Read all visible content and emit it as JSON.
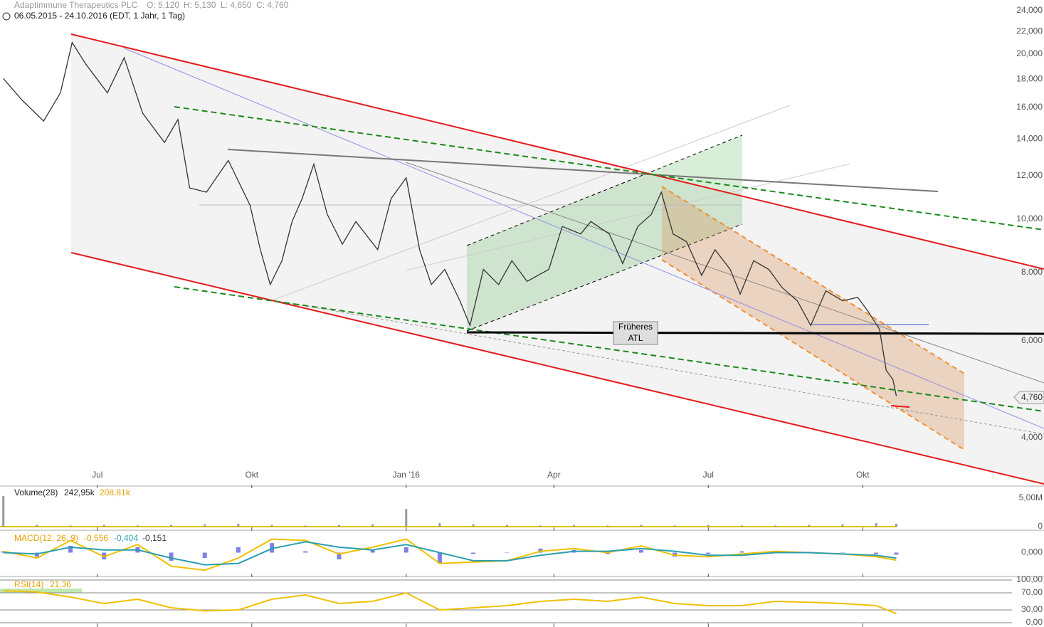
{
  "chart_data": [
    {
      "type": "line",
      "title": "Adaptimmune Therapeutics PLC",
      "ohlc": [
        "O: 5,120",
        "H: 5,130",
        "L: 4,650",
        "C: 4,760"
      ],
      "subtitle": "06.05.2015 - 24.10.2016 (EDT, 1 Jahr, 1 Tag)",
      "annotation": [
        "Früheres",
        "ATL"
      ],
      "last_label": "4,760",
      "log_scale": true,
      "color": "#333333",
      "x": [
        0,
        11,
        24,
        34,
        41,
        49,
        62,
        72,
        83,
        96,
        104,
        111,
        121,
        134,
        147,
        153,
        159,
        166,
        172,
        178,
        185,
        193,
        202,
        210,
        223,
        231,
        240,
        248,
        255,
        263,
        272,
        278,
        286,
        295,
        303,
        312,
        325,
        333,
        344,
        350,
        361,
        369,
        378,
        386,
        392,
        399,
        407,
        416,
        424,
        433,
        439,
        447,
        456,
        464,
        473,
        481,
        490,
        500,
        509,
        515,
        522,
        526,
        530,
        532
      ],
      "values": [
        18.05,
        16.5,
        15.1,
        17.0,
        21.0,
        19.2,
        17.0,
        19.7,
        15.6,
        13.8,
        15.2,
        11.4,
        11.2,
        12.8,
        10.6,
        8.82,
        7.6,
        8.4,
        9.9,
        10.9,
        12.6,
        10.2,
        9.0,
        9.9,
        8.8,
        10.9,
        11.9,
        8.8,
        7.6,
        8.1,
        7.1,
        6.4,
        8.1,
        7.6,
        8.4,
        7.7,
        8.1,
        9.7,
        9.4,
        9.9,
        9.4,
        8.3,
        9.7,
        10.2,
        11.2,
        9.4,
        9.1,
        7.9,
        8.8,
        8.1,
        7.3,
        8.4,
        8.1,
        7.5,
        7.1,
        6.4,
        7.4,
        7.1,
        7.2,
        6.8,
        6.3,
        5.3,
        5.1,
        4.76
      ],
      "xlim": [
        -2,
        620
      ],
      "xticks": [
        {
          "value": 56,
          "label": "Jul"
        },
        {
          "value": 148,
          "label": "Okt"
        },
        {
          "value": 240,
          "label": "Jan '16"
        },
        {
          "value": 328,
          "label": "Apr"
        },
        {
          "value": 420,
          "label": "Jul"
        },
        {
          "value": 512,
          "label": "Okt"
        }
      ],
      "ylim": [
        3.29,
        25.1
      ],
      "yticks": [
        {
          "value": 4,
          "label": "4,000"
        },
        {
          "value": 6,
          "label": "6,000"
        },
        {
          "value": 8,
          "label": "8,000"
        },
        {
          "value": 10,
          "label": "10,000"
        },
        {
          "value": 12,
          "label": "12,000"
        },
        {
          "value": 14,
          "label": "14,000"
        },
        {
          "value": 16,
          "label": "16,000"
        },
        {
          "value": 18,
          "label": "18,000"
        },
        {
          "value": 20,
          "label": "20,000"
        },
        {
          "value": 22,
          "label": "22,000"
        },
        {
          "value": 24,
          "label": "24,000"
        }
      ]
    },
    {
      "type": "bar",
      "title": "Volume(28)",
      "stats": [
        "242,95k",
        "208,81k"
      ],
      "color": "#999999",
      "x": [
        0,
        20,
        40,
        60,
        80,
        100,
        120,
        140,
        160,
        180,
        200,
        220,
        240,
        260,
        280,
        300,
        320,
        340,
        360,
        380,
        400,
        420,
        440,
        460,
        480,
        500,
        520,
        532
      ],
      "values": [
        5.4,
        0.3,
        0.2,
        0.3,
        0.2,
        0.3,
        0.4,
        0.5,
        0.3,
        0.2,
        0.3,
        0.4,
        3.1,
        0.6,
        0.4,
        0.3,
        0.2,
        0.3,
        0.2,
        0.3,
        0.2,
        0.3,
        0.2,
        0.2,
        0.3,
        0.4,
        0.6,
        0.5
      ],
      "xlim": [
        -2,
        620
      ],
      "xticks": [
        56,
        148,
        240,
        328,
        420,
        512
      ],
      "ylim": [
        0,
        5.5
      ],
      "yticks": [
        {
          "value": 5,
          "label": "5,00M"
        },
        0
      ]
    },
    {
      "type": "line",
      "title": "MACD(12, 26, 9)",
      "stats": [
        "-0,556",
        "-0,404",
        "-0,151"
      ],
      "x": [
        0,
        20,
        40,
        60,
        80,
        100,
        120,
        140,
        160,
        180,
        200,
        220,
        240,
        260,
        280,
        300,
        320,
        340,
        360,
        380,
        400,
        420,
        440,
        460,
        480,
        500,
        520,
        532
      ],
      "series": [
        {
          "style": "bar",
          "color": "#7f7fe6",
          "values": [
            0.1,
            -0.3,
            0.5,
            -0.5,
            0.4,
            -0.6,
            -0.4,
            0.4,
            0.7,
            0.1,
            -0.5,
            0.2,
            0.4,
            -0.8,
            -0.1,
            0.0,
            0.3,
            0.2,
            -0.1,
            0.2,
            -0.3,
            -0.1,
            0.1,
            0.1,
            0.0,
            0.0,
            -0.1,
            -0.151
          ]
        },
        {
          "style": "line",
          "color": "#f0c000",
          "values": [
            0.1,
            -0.4,
            0.9,
            -0.3,
            0.6,
            -1.0,
            -1.3,
            -0.4,
            1.0,
            0.9,
            -0.1,
            0.4,
            1.0,
            -0.8,
            -0.7,
            -0.6,
            0.1,
            0.3,
            0.0,
            0.5,
            -0.2,
            -0.3,
            -0.1,
            0.1,
            0.0,
            -0.1,
            -0.3,
            -0.556
          ]
        },
        {
          "style": "line",
          "color": "#2a9fb0",
          "values": [
            0.0,
            -0.1,
            0.4,
            0.2,
            0.2,
            -0.4,
            -0.9,
            -0.8,
            0.3,
            0.8,
            0.4,
            0.2,
            0.6,
            0.0,
            -0.6,
            -0.6,
            -0.2,
            0.1,
            0.1,
            0.3,
            0.1,
            -0.2,
            -0.2,
            0.0,
            0.0,
            -0.1,
            -0.2,
            -0.404
          ]
        }
      ],
      "xlim": [
        -2,
        620
      ],
      "xticks": [
        56,
        148,
        240,
        328,
        420,
        512
      ],
      "ylim": [
        -1.5,
        1.5
      ],
      "yticks": [
        {
          "value": 0,
          "label": "0,000"
        }
      ]
    },
    {
      "type": "line",
      "title": "RSI(14)",
      "stats": [
        "21,36"
      ],
      "color": "#f0c000",
      "grid": true,
      "x": [
        0,
        20,
        40,
        60,
        80,
        100,
        120,
        140,
        160,
        180,
        200,
        220,
        240,
        260,
        280,
        300,
        320,
        340,
        360,
        380,
        400,
        420,
        440,
        460,
        480,
        500,
        520,
        532
      ],
      "values": [
        75,
        72,
        60,
        45,
        55,
        35,
        28,
        30,
        55,
        65,
        45,
        50,
        70,
        30,
        35,
        40,
        50,
        55,
        50,
        60,
        45,
        40,
        40,
        50,
        48,
        45,
        40,
        21.36
      ],
      "xlim": [
        -2,
        620
      ],
      "xticks": [
        56,
        148,
        240,
        328,
        420,
        512
      ],
      "ylim": [
        0,
        100
      ],
      "yticks": [
        {
          "value": 100,
          "label": "100,00"
        },
        {
          "value": 70,
          "label": "70,00"
        },
        {
          "value": 30,
          "label": "30,00"
        },
        {
          "value": 0,
          "label": "0,00"
        }
      ]
    }
  ]
}
